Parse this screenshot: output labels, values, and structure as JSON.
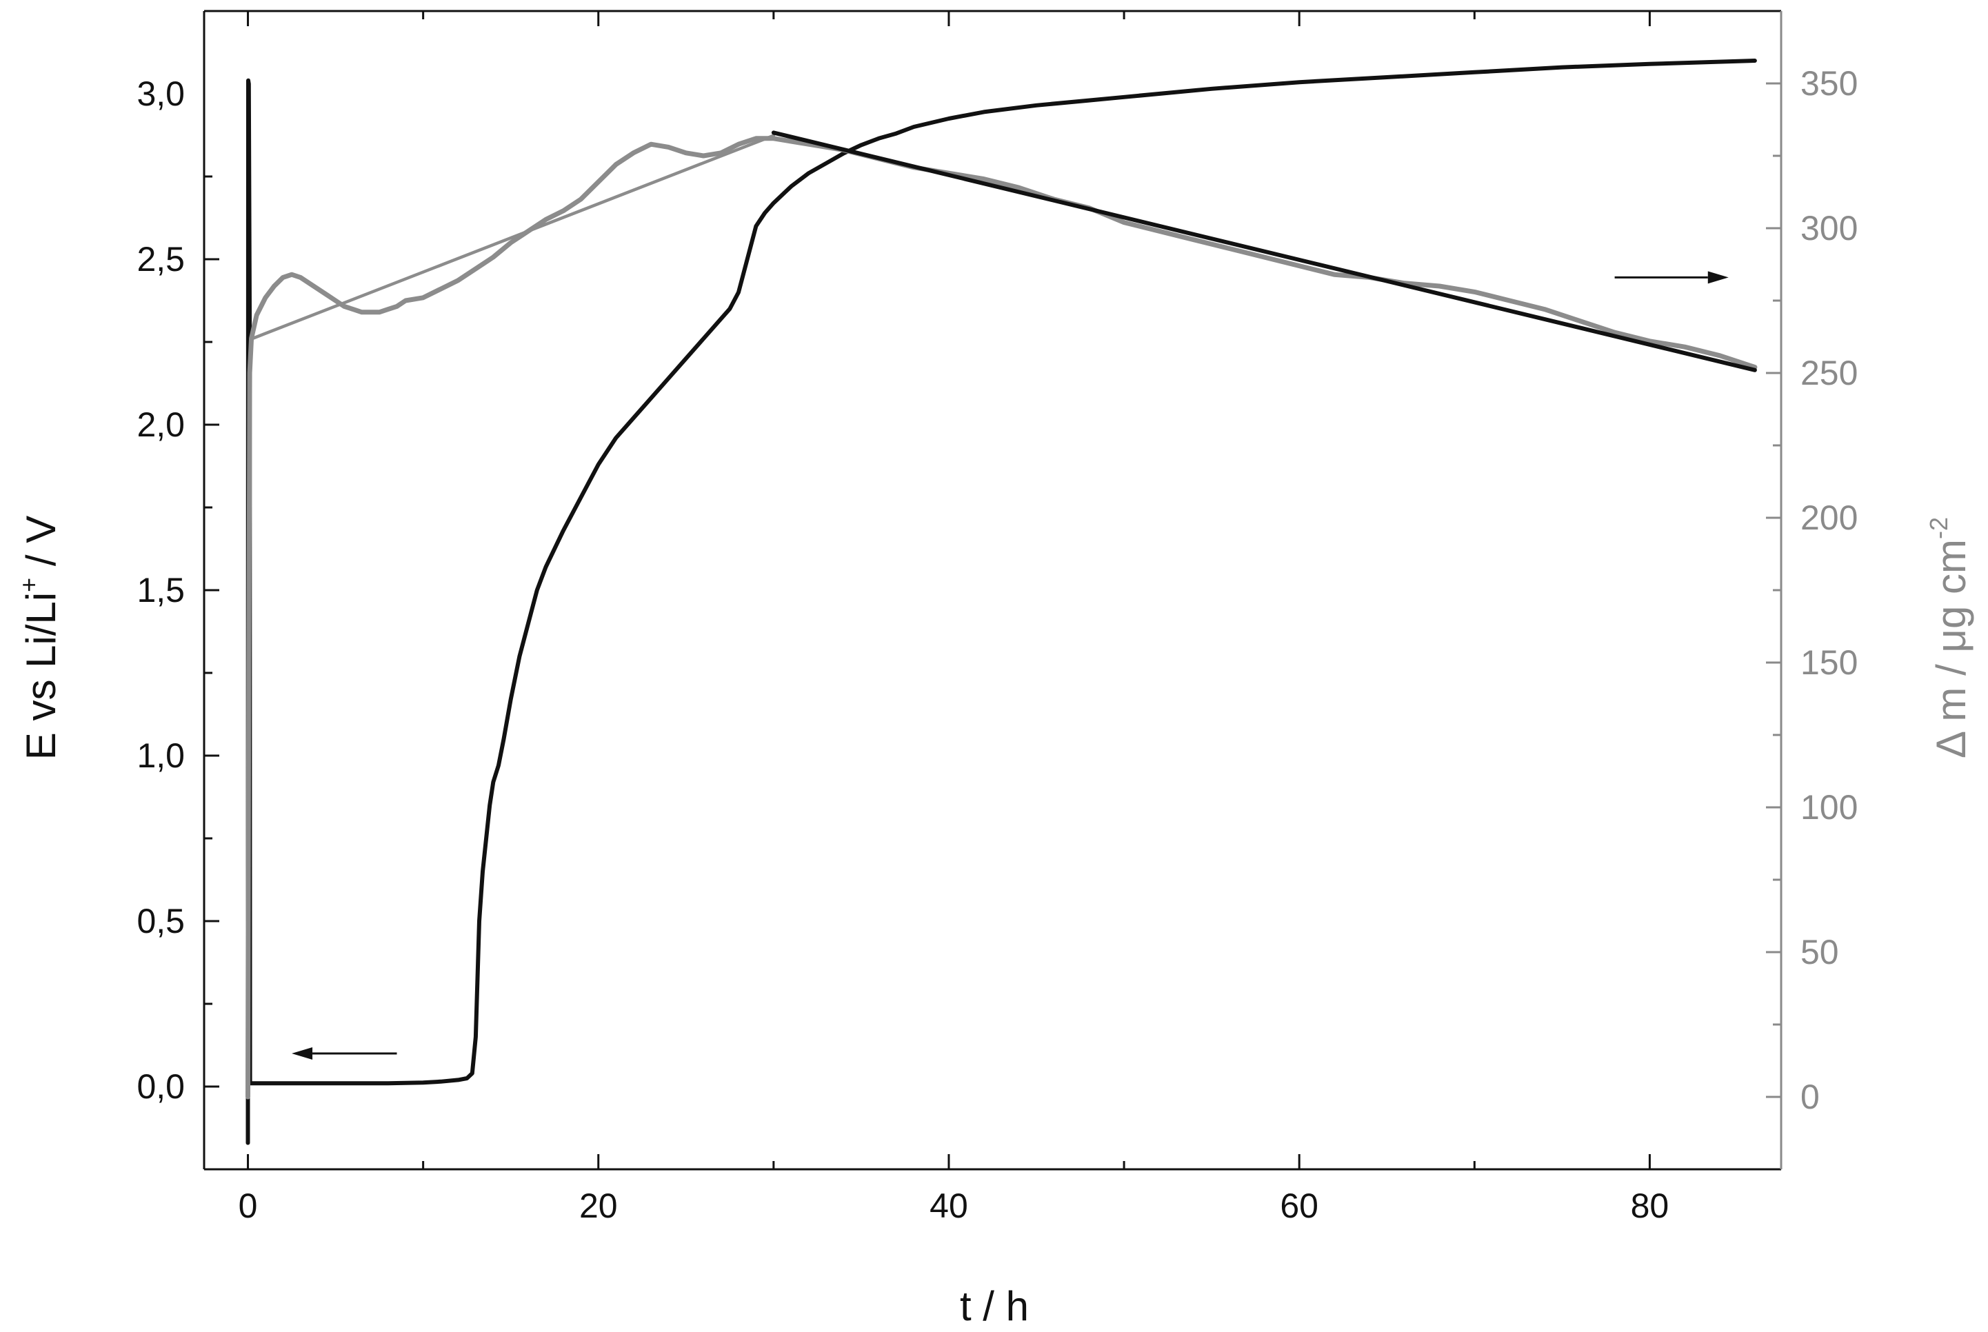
{
  "chart_data": {
    "type": "line",
    "xlabel": "t / h",
    "ylabel_left": {
      "main": "E vs Li/Li",
      "sup": "+",
      "tail": " / V"
    },
    "ylabel_right": {
      "main": "Δ m / μg cm",
      "sup": "-2"
    },
    "xlim": [
      -2.5,
      87.5
    ],
    "ylim_left": [
      -0.25,
      3.25
    ],
    "ylim_right": [
      -25,
      375
    ],
    "x_ticks": [
      0,
      20,
      40,
      60,
      80
    ],
    "y_left_ticks": [
      {
        "value": 0.0,
        "label": "0,0"
      },
      {
        "value": 0.5,
        "label": "0,5"
      },
      {
        "value": 1.0,
        "label": "1,0"
      },
      {
        "value": 1.5,
        "label": "1,5"
      },
      {
        "value": 2.0,
        "label": "2,0"
      },
      {
        "value": 2.5,
        "label": "2,5"
      },
      {
        "value": 3.0,
        "label": "3,0"
      }
    ],
    "y_right_ticks": [
      0,
      50,
      100,
      150,
      200,
      250,
      300,
      350
    ],
    "colors": {
      "potential": "#111111",
      "mass": "#8c8c8c",
      "fit": "#111111"
    },
    "series": [
      {
        "axis": "left",
        "color": "#111111",
        "x": [
          0,
          0.02,
          0.05,
          0.1,
          0.12,
          0.2,
          0.4,
          1,
          2,
          4,
          6,
          8,
          10,
          11,
          12,
          12.5,
          12.8,
          13,
          13.2,
          13.4,
          13.6,
          13.8,
          14,
          14.3,
          14.6,
          15,
          15.5,
          16,
          16.5,
          17,
          18,
          19,
          20,
          21,
          22,
          23,
          24,
          25,
          26,
          27,
          27.5,
          28,
          28.5,
          29,
          29.5,
          30,
          31,
          32,
          33,
          34,
          35,
          36,
          37,
          38,
          40,
          42,
          45,
          48,
          50,
          55,
          60,
          65,
          70,
          75,
          80,
          86
        ],
        "y": [
          -0.17,
          3.04,
          3.03,
          2.3,
          0.01,
          0.01,
          0.01,
          0.01,
          0.01,
          0.01,
          0.01,
          0.01,
          0.012,
          0.015,
          0.02,
          0.025,
          0.04,
          0.15,
          0.5,
          0.65,
          0.75,
          0.85,
          0.92,
          0.97,
          1.05,
          1.17,
          1.3,
          1.4,
          1.5,
          1.57,
          1.68,
          1.78,
          1.88,
          1.96,
          2.02,
          2.08,
          2.14,
          2.2,
          2.26,
          2.32,
          2.35,
          2.4,
          2.5,
          2.6,
          2.64,
          2.67,
          2.72,
          2.76,
          2.79,
          2.82,
          2.845,
          2.865,
          2.88,
          2.9,
          2.925,
          2.945,
          2.965,
          2.98,
          2.99,
          3.015,
          3.035,
          3.05,
          3.065,
          3.08,
          3.09,
          3.1
        ]
      },
      {
        "axis": "right",
        "color": "#8c8c8c",
        "x": [
          0,
          0.05,
          0.1,
          0.2,
          0.5,
          1,
          1.5,
          2,
          2.5,
          3,
          3.5,
          4,
          4.5,
          5,
          5.5,
          6,
          6.5,
          7,
          7.5,
          8,
          8.5,
          9,
          10,
          11,
          12,
          13,
          14,
          15,
          16,
          17,
          18,
          19,
          20,
          21,
          22,
          23,
          24,
          25,
          26,
          27,
          28,
          29,
          30,
          32,
          34,
          36,
          38,
          40,
          42,
          44,
          46,
          48,
          50,
          52,
          54,
          56,
          58,
          60,
          62,
          64,
          66,
          68,
          70,
          72,
          74,
          76,
          78,
          80,
          82,
          84,
          85,
          86
        ],
        "y": [
          0,
          150,
          250,
          262,
          270,
          276,
          280,
          283,
          284,
          283,
          281,
          279,
          277,
          275,
          273,
          272,
          271,
          271,
          271,
          272,
          273,
          275,
          276,
          279,
          282,
          286,
          290,
          295,
          299,
          303,
          306,
          310,
          316,
          322,
          326,
          329,
          328,
          326,
          325,
          326,
          329,
          331,
          331,
          329,
          327,
          324,
          321,
          319,
          317,
          314,
          310,
          307,
          302,
          299,
          296,
          293,
          290,
          287,
          284,
          283,
          281,
          280,
          278,
          275,
          272,
          268,
          264,
          261,
          259,
          256,
          254,
          252
        ]
      },
      {
        "axis": "right",
        "color": "#8c8c8c",
        "x": [
          0.3,
          30
        ],
        "y": [
          262,
          332
        ]
      },
      {
        "axis": "right",
        "color": "#111111",
        "x": [
          30,
          86
        ],
        "y": [
          333,
          251
        ]
      }
    ],
    "annotations": [
      {
        "type": "arrow",
        "direction": "left",
        "axis": "left",
        "x_from": 8.5,
        "x_to": 2.5,
        "y": 0.1
      },
      {
        "type": "arrow",
        "direction": "right",
        "axis": "right",
        "x_from": 78,
        "x_to": 84.5,
        "y": 283
      }
    ],
    "grid": false,
    "legend": "none"
  }
}
